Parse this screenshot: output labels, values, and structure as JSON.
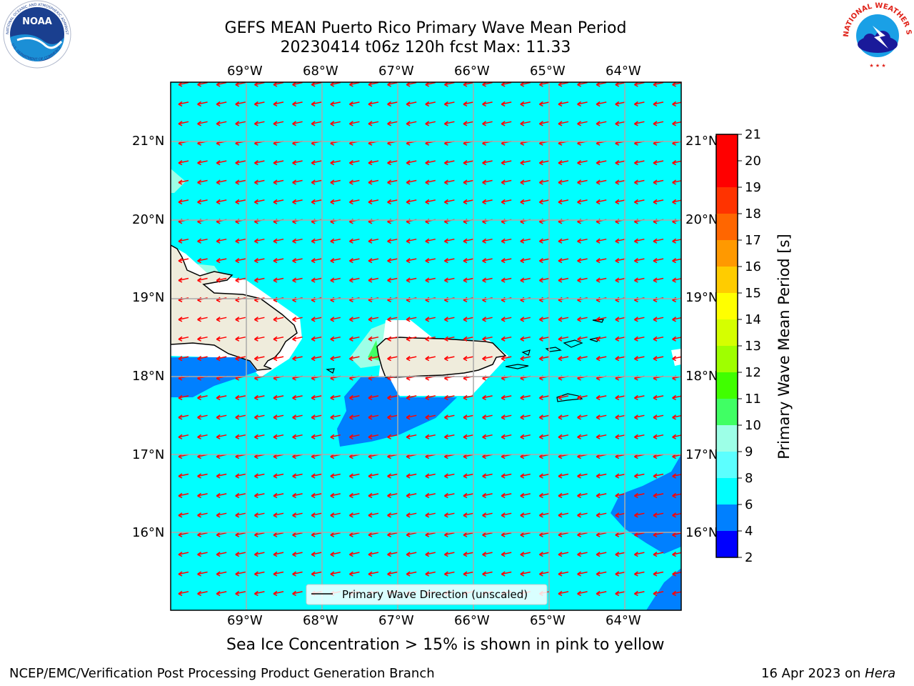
{
  "title": {
    "line1": "GEFS MEAN Puerto Rico Primary Wave Mean Period",
    "line2": "20230414 t06z 120h fcst   Max: 11.33"
  },
  "logos": {
    "noaa_text": "NOAA",
    "noaa_ring": "NATIONAL OCEANIC AND ATMOSPHERIC ADMINISTRATION",
    "noaa_ring_bottom": "U.S. DEPARTMENT OF COMMERCE",
    "nws_ring": "NATIONAL WEATHER SERVICE"
  },
  "map": {
    "lon_labels": [
      "69°W",
      "68°W",
      "67°W",
      "66°W",
      "65°W",
      "64°W"
    ],
    "lat_labels": [
      "21°N",
      "20°N",
      "19°N",
      "18°N",
      "17°N",
      "16°N"
    ],
    "legend_label": "Primary Wave Direction (unscaled)",
    "colors": {
      "background_field": "#00ffff",
      "low_period": "#0080ff",
      "land": "#efecdc",
      "arrows": "#ff0000",
      "grid": "#aaaaaa"
    }
  },
  "colorbar": {
    "label": "Primary Wave Mean Period [s]",
    "ticks": [
      "2",
      "4",
      "6",
      "8",
      "9",
      "10",
      "11",
      "12",
      "13",
      "14",
      "15",
      "16",
      "17",
      "18",
      "19",
      "20",
      "21"
    ],
    "colors": [
      "#0000ff",
      "#0080ff",
      "#00ffff",
      "#5cffff",
      "#9dffe7",
      "#40ff64",
      "#40ff00",
      "#9fff00",
      "#d5ff00",
      "#ffff00",
      "#ffcc00",
      "#ff9900",
      "#ff6600",
      "#ff3300",
      "#ff0000"
    ]
  },
  "note": "Sea Ice Concentration > 15% is shown in pink to yellow",
  "footer": {
    "left": "NCEP/EMC/Verification Post Processing Product Generation Branch",
    "date": "16 Apr 2023 on ",
    "machine": "Hera"
  }
}
